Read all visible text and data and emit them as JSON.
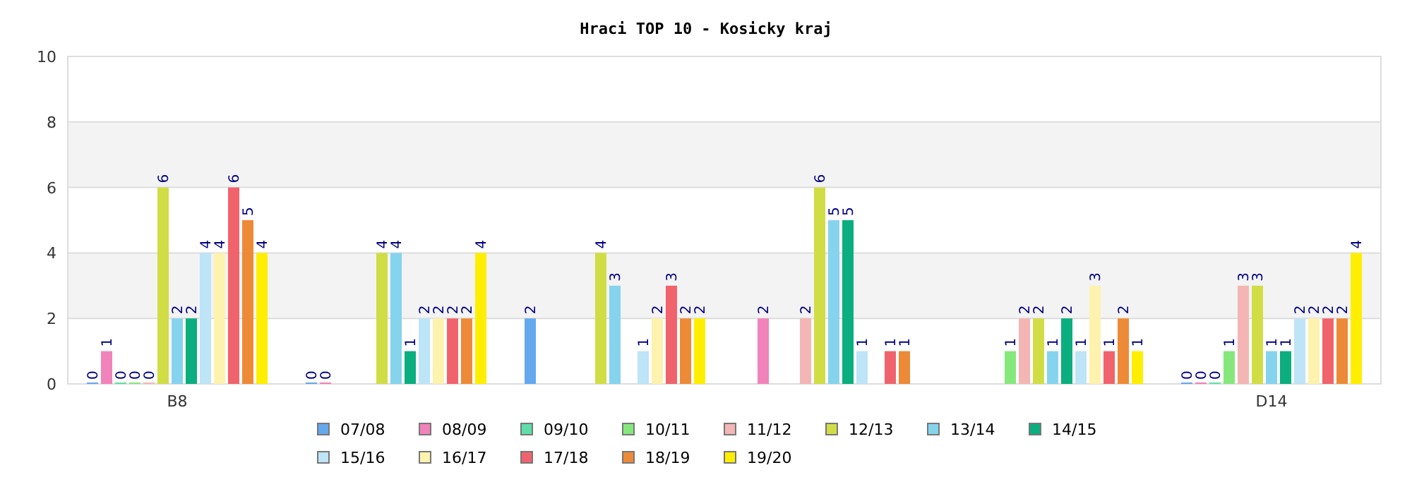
{
  "chart_data": {
    "type": "bar",
    "title": "Hraci TOP 10 - Kosicky kraj",
    "categories": [
      "B8",
      null,
      null,
      null,
      null,
      "D14"
    ],
    "ylim": [
      0,
      10
    ],
    "yticks": [
      0,
      2,
      4,
      6,
      8,
      10
    ],
    "grid": "y",
    "legend": "bottom",
    "data_labels": true,
    "series": [
      {
        "name": "07/08",
        "color": "#64a8ee",
        "values": [
          0,
          0,
          2,
          null,
          null,
          0
        ]
      },
      {
        "name": "08/09",
        "color": "#f183bb",
        "values": [
          1,
          0,
          null,
          2,
          null,
          0
        ]
      },
      {
        "name": "09/10",
        "color": "#5edfa8",
        "values": [
          0,
          null,
          null,
          null,
          null,
          0
        ]
      },
      {
        "name": "10/11",
        "color": "#86e87c",
        "values": [
          0,
          null,
          null,
          null,
          1,
          1
        ]
      },
      {
        "name": "11/12",
        "color": "#f4b6b4",
        "values": [
          0,
          null,
          null,
          2,
          2,
          3
        ]
      },
      {
        "name": "12/13",
        "color": "#d1dd45",
        "values": [
          6,
          4,
          4,
          6,
          2,
          3
        ]
      },
      {
        "name": "13/14",
        "color": "#86d3ee",
        "values": [
          2,
          4,
          3,
          5,
          1,
          1
        ]
      },
      {
        "name": "14/15",
        "color": "#0bae7e",
        "values": [
          2,
          1,
          null,
          5,
          2,
          1
        ]
      },
      {
        "name": "15/16",
        "color": "#bde4f7",
        "values": [
          4,
          2,
          1,
          1,
          1,
          2
        ]
      },
      {
        "name": "16/17",
        "color": "#fdf2ae",
        "values": [
          4,
          2,
          2,
          null,
          3,
          2
        ]
      },
      {
        "name": "17/18",
        "color": "#f1636c",
        "values": [
          6,
          2,
          3,
          1,
          1,
          2
        ]
      },
      {
        "name": "18/19",
        "color": "#ed8a37",
        "values": [
          5,
          2,
          2,
          1,
          2,
          2
        ]
      },
      {
        "name": "19/20",
        "color": "#ffee00",
        "values": [
          4,
          4,
          2,
          null,
          1,
          4
        ]
      }
    ]
  }
}
